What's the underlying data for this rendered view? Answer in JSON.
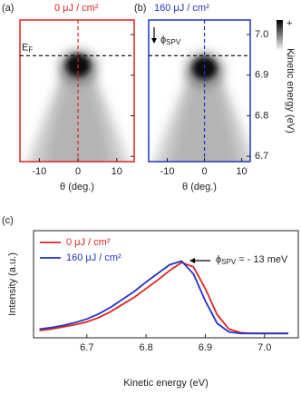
{
  "chart_data": [
    {
      "type": "image",
      "panel_label": "(a)",
      "title": "0 μJ / cm²",
      "color": "#e0241f",
      "xlim": [
        -15,
        14.5
      ],
      "xticks": [
        -10,
        0,
        10
      ],
      "ylim": [
        6.687,
        7.036
      ],
      "yticks": [
        6.7,
        6.8,
        6.9,
        7.0
      ],
      "x_label": "θ (deg.)",
      "fermi_level": 6.948,
      "center_line": 0,
      "ef_label": {
        "main": "E",
        "sub": "F"
      }
    },
    {
      "type": "image",
      "panel_label": "(b)",
      "title": "160 μJ / cm²",
      "color": "#2233c4",
      "xlim": [
        -15,
        12.3
      ],
      "xticks": [
        -10,
        0,
        10
      ],
      "ylim": [
        6.687,
        7.036
      ],
      "yticks": [
        {
          "value": 6.7,
          "label": "6.7"
        },
        {
          "value": 6.8,
          "label": "6.8"
        },
        {
          "value": 6.9,
          "label": "6.9"
        },
        {
          "value": 7.0,
          "label": "7.0"
        }
      ],
      "x_label": "θ (deg.)",
      "y_label": "Kinetic energy (eV)",
      "fermi_level": 6.948,
      "center_line": 0,
      "shift_label": {
        "main": "ϕ",
        "sub": "SPV"
      },
      "colorbar_labels": [
        "+",
        "-"
      ]
    },
    {
      "type": "line",
      "panel_label": "(c)",
      "x_label": "Kinetic energy (eV)",
      "y_label": "Intensity (a.u.)",
      "xlim": [
        6.61,
        7.057
      ],
      "xticks": [
        6.7,
        6.8,
        6.9,
        {
          "value": 7.0,
          "label": "7.0"
        }
      ],
      "ylim": [
        -0.06,
        1.42
      ],
      "x": [
        6.62,
        6.64,
        6.66,
        6.68,
        6.7,
        6.72,
        6.74,
        6.76,
        6.78,
        6.8,
        6.82,
        6.84,
        6.86,
        6.88,
        6.9,
        6.92,
        6.94,
        6.96,
        6.98,
        7.0,
        7.02,
        7.04
      ],
      "series": [
        {
          "name": "0 μJ / cm²",
          "color": "#e0241f",
          "values": [
            0.04,
            0.06,
            0.09,
            0.12,
            0.16,
            0.22,
            0.3,
            0.4,
            0.5,
            0.62,
            0.74,
            0.87,
            0.98,
            0.92,
            0.62,
            0.26,
            0.06,
            0.01,
            0,
            0,
            0,
            0
          ]
        },
        {
          "name": "160 μJ / cm²",
          "color": "#2233c4",
          "values": [
            0.06,
            0.08,
            0.11,
            0.15,
            0.2,
            0.27,
            0.36,
            0.47,
            0.58,
            0.71,
            0.83,
            0.95,
            1.0,
            0.82,
            0.45,
            0.14,
            0.02,
            0,
            0,
            0,
            0,
            0
          ]
        }
      ],
      "legend": "upper left",
      "annotation": {
        "main": "ϕ",
        "sub": "SPV",
        "rest": " = - 13 meV"
      }
    }
  ]
}
